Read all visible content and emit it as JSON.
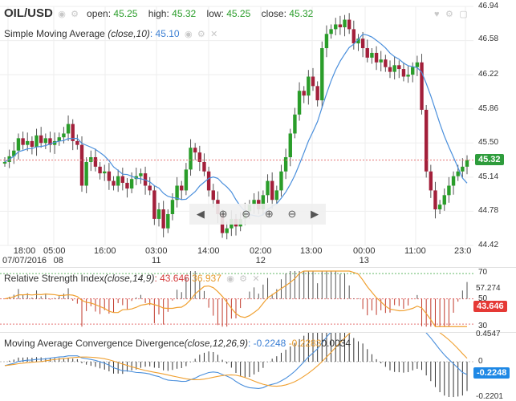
{
  "main": {
    "symbol": "OIL/USD",
    "open_label": "open:",
    "open_value": "45.25",
    "high_label": "high:",
    "high_value": "45.32",
    "low_label": "low:",
    "low_value": "45.25",
    "close_label": "close:",
    "close_value": "45.32",
    "sma_label": "Simple Moving Average",
    "sma_params": "(close,10)",
    "sma_value": ": 45.10",
    "y_ticks": [
      "46.94",
      "46.58",
      "46.22",
      "45.86",
      "45.50",
      "45.14",
      "44.78",
      "44.42"
    ],
    "last_price": "45.32",
    "x_ticks": [
      {
        "top": "18:00",
        "bottom": "07/07/2016"
      },
      {
        "top": "05:00",
        "bottom": "08"
      },
      {
        "top": "16:00",
        "bottom": ""
      },
      {
        "top": "03:00",
        "bottom": "11"
      },
      {
        "top": "14:00",
        "bottom": ""
      },
      {
        "top": "02:00",
        "bottom": "12"
      },
      {
        "top": "13:00",
        "bottom": ""
      },
      {
        "top": "00:00",
        "bottom": "13"
      },
      {
        "top": "11:00",
        "bottom": ""
      },
      {
        "top": "23:0",
        "bottom": ""
      }
    ]
  },
  "rsi": {
    "label": "Relative Strength Index",
    "params": "(close,14,9)",
    "value1": ": 43.646",
    "value2": "36.937",
    "y_ticks": [
      "70",
      "57.274",
      "50",
      "30"
    ],
    "last_value": "43.646"
  },
  "macd": {
    "label": "Moving Average Convergence Divergence",
    "params": "(close,12,26,9)",
    "value1": ": -0.2248",
    "value2": "-0.2283",
    "value3": "0.0034",
    "y_ticks": [
      "0.4547",
      "0",
      "-0.2201"
    ],
    "last_value": "-0.2248"
  },
  "colors": {
    "up": "#2a9d2a",
    "down": "#a3203b",
    "sma": "#4a8fdc",
    "signal": "#f0a030",
    "red_tag": "#e53935",
    "blue_tag": "#1e88e5",
    "green_tag": "#2e9c3c"
  },
  "icons": [
    "eye-icon",
    "gear-icon",
    "close-icon",
    "heart-icon",
    "expand-icon",
    "zoom-in-icon",
    "zoom-out-icon",
    "pan-left-icon",
    "pan-right-icon"
  ]
}
